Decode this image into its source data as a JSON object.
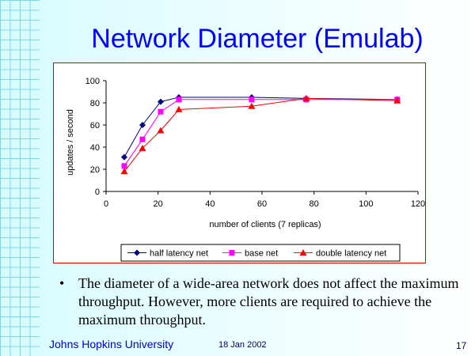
{
  "slide": {
    "title": "Network Diameter (Emulab)",
    "bullet_symbol": "•",
    "bullet_text": "The diameter of a wide-area network does not affect the maximum throughput. However, more clients are required to achieve the maximum throughput.",
    "footer_left": "Johns Hopkins University",
    "footer_date": "18 Jan 2002",
    "page_number": "17"
  },
  "chart_data": {
    "type": "line",
    "title": "",
    "xlabel": "number of clients (7 replicas)",
    "ylabel": "updates / second",
    "xlim": [
      0,
      120
    ],
    "ylim": [
      0,
      100
    ],
    "xticks": [
      0,
      20,
      40,
      60,
      80,
      100,
      120
    ],
    "yticks": [
      0,
      20,
      40,
      60,
      80,
      100
    ],
    "grid": false,
    "legend_position": "bottom",
    "series": [
      {
        "name": "half latency net",
        "color": "#000080",
        "marker": "diamond",
        "x": [
          7,
          14,
          21,
          28,
          56,
          77,
          112
        ],
        "y": [
          31,
          60,
          81,
          85,
          85,
          84,
          83
        ]
      },
      {
        "name": "base net",
        "color": "#ff00ff",
        "marker": "square",
        "x": [
          7,
          14,
          21,
          28,
          56,
          77,
          112
        ],
        "y": [
          23,
          47,
          72,
          83,
          83,
          83,
          83
        ]
      },
      {
        "name": "double latency net",
        "color": "#ff0000",
        "marker": "triangle",
        "x": [
          7,
          14,
          21,
          28,
          56,
          77,
          112
        ],
        "y": [
          18,
          39,
          55,
          74,
          77,
          84,
          82
        ]
      }
    ]
  }
}
